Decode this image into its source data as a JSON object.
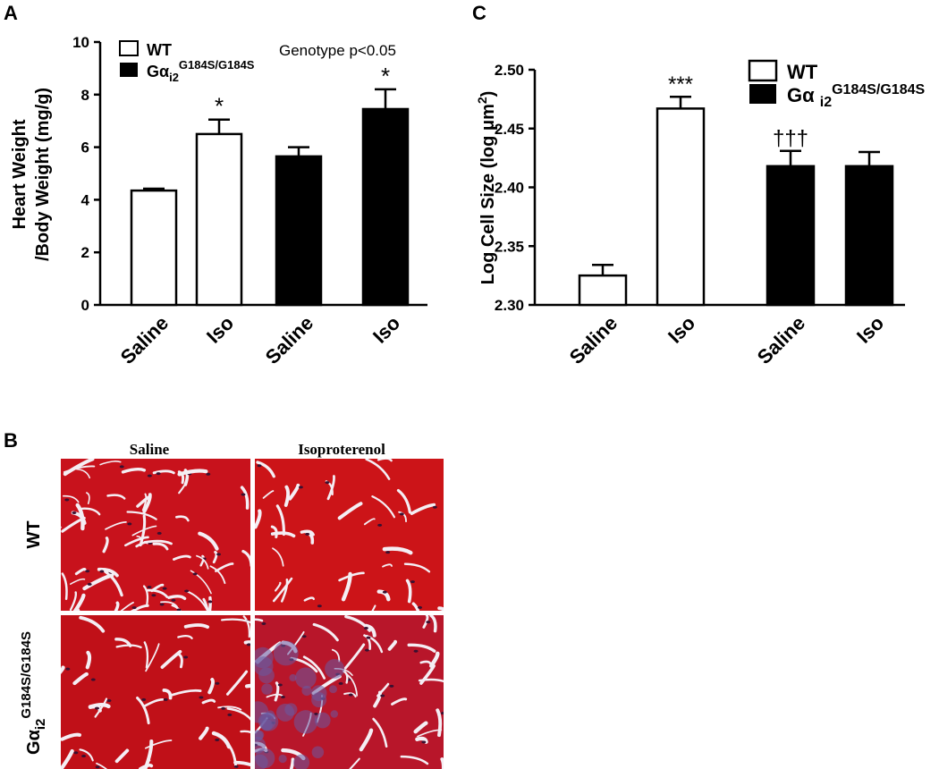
{
  "chart_data": [
    {
      "type": "bar",
      "panel": "A",
      "ylabel": [
        "Heart Weight",
        "/Body Weight (mg/g)"
      ],
      "annotation": "Genotype p<0.05",
      "categories": [
        "Saline",
        "Iso",
        "Saline",
        "Iso"
      ],
      "series": [
        {
          "name": "WT",
          "color": "#ffffff",
          "values": [
            4.35,
            6.5,
            null,
            null
          ],
          "errors": [
            0.07,
            0.55,
            null,
            null
          ],
          "value_annotations": [
            null,
            "*",
            null,
            null
          ]
        },
        {
          "name": "Gα",
          "name_sub": "i2",
          "name_sup": "G184S/G184S",
          "color": "#000000",
          "values": [
            null,
            null,
            5.65,
            7.45
          ],
          "errors": [
            null,
            null,
            0.35,
            0.75
          ],
          "value_annotations": [
            null,
            null,
            null,
            "*"
          ]
        }
      ],
      "ylim": [
        0,
        10
      ],
      "yticks": [
        0,
        2,
        4,
        6,
        8,
        10
      ]
    },
    {
      "type": "bar",
      "panel": "C",
      "ylabel": "Log Cell Size (log μm",
      "ylabel_sup": "2",
      "ylabel_end": ")",
      "categories": [
        "Saline",
        "Iso",
        "Saline",
        "Iso"
      ],
      "series": [
        {
          "name": "WT",
          "color": "#ffffff",
          "values": [
            2.325,
            2.467,
            null,
            null
          ],
          "errors": [
            0.009,
            0.01,
            null,
            null
          ],
          "value_annotations": [
            null,
            "***",
            null,
            null
          ]
        },
        {
          "name": "Gα ",
          "name_sub": "i2",
          "name_sup": "G184S/G184S",
          "color": "#000000",
          "values": [
            null,
            null,
            2.418,
            2.418
          ],
          "errors": [
            null,
            null,
            0.013,
            0.012
          ],
          "value_annotations": [
            null,
            null,
            "†††",
            null
          ]
        }
      ],
      "ylim": [
        2.3,
        2.5
      ],
      "yticks": [
        {
          "value": 2.3,
          "label": "2.30"
        },
        {
          "value": 2.35,
          "label": "2.35"
        },
        {
          "value": 2.4,
          "label": "2.40"
        },
        {
          "value": 2.45,
          "label": "2.45"
        },
        {
          "value": 2.5,
          "label": "2.50"
        }
      ]
    }
  ],
  "panel_b": {
    "panel": "B",
    "columns": [
      "Saline",
      "Isoproterenol"
    ],
    "rows": [
      {
        "label": "WT"
      },
      {
        "label": "Gα",
        "label_sub": "i2",
        "label_sup": "G184S/G184S"
      }
    ]
  }
}
